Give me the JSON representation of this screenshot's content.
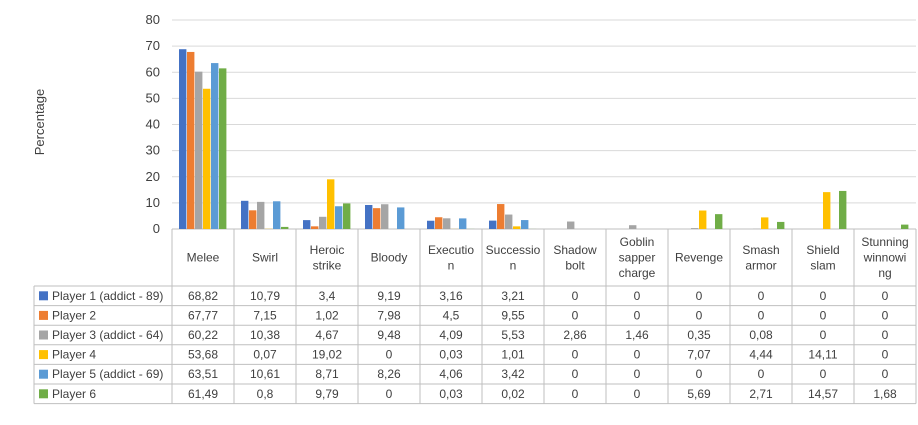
{
  "chart_data": {
    "type": "bar",
    "ylabel": "Percentage",
    "ylim": [
      0,
      80
    ],
    "yticks": [
      0,
      10,
      20,
      30,
      40,
      50,
      60,
      70,
      80
    ],
    "gridlines": true,
    "legend": "table-left",
    "categories": [
      [
        "Melee"
      ],
      [
        "Swirl"
      ],
      [
        "Heroic",
        "strike"
      ],
      [
        "Bloody"
      ],
      [
        "Executio",
        "n"
      ],
      [
        "Successio",
        "n"
      ],
      [
        "Shadow",
        "bolt"
      ],
      [
        "Goblin",
        "sapper",
        "charge"
      ],
      [
        "Revenge"
      ],
      [
        "Smash",
        "armor"
      ],
      [
        "Shield",
        "slam"
      ],
      [
        "Stunning",
        "winnowi",
        "ng"
      ]
    ],
    "series": [
      {
        "name": "Player 1 (addict - 89)",
        "color": "#4472C4",
        "values": [
          68.82,
          10.79,
          3.4,
          9.19,
          3.16,
          3.21,
          0,
          0,
          0,
          0,
          0,
          0
        ],
        "labels": [
          "68,82",
          "10,79",
          "3,4",
          "9,19",
          "3,16",
          "3,21",
          "0",
          "0",
          "0",
          "0",
          "0",
          "0"
        ]
      },
      {
        "name": "Player 2",
        "color": "#ED7D31",
        "values": [
          67.77,
          7.15,
          1.02,
          7.98,
          4.5,
          9.55,
          0,
          0,
          0,
          0,
          0,
          0
        ],
        "labels": [
          "67,77",
          "7,15",
          "1,02",
          "7,98",
          "4,5",
          "9,55",
          "0",
          "0",
          "0",
          "0",
          "0",
          "0"
        ]
      },
      {
        "name": "Player 3 (addict - 64)",
        "color": "#A5A5A5",
        "values": [
          60.22,
          10.38,
          4.67,
          9.48,
          4.09,
          5.53,
          2.86,
          1.46,
          0.35,
          0.08,
          0,
          0
        ],
        "labels": [
          "60,22",
          "10,38",
          "4,67",
          "9,48",
          "4,09",
          "5,53",
          "2,86",
          "1,46",
          "0,35",
          "0,08",
          "0",
          "0"
        ]
      },
      {
        "name": "Player 4",
        "color": "#FFC000",
        "values": [
          53.68,
          0.07,
          19.02,
          0,
          0.03,
          1.01,
          0,
          0,
          7.07,
          4.44,
          14.11,
          0
        ],
        "labels": [
          "53,68",
          "0,07",
          "19,02",
          "0",
          "0,03",
          "1,01",
          "0",
          "0",
          "7,07",
          "4,44",
          "14,11",
          "0"
        ]
      },
      {
        "name": "Player 5 (addict - 69)",
        "color": "#5B9BD5",
        "values": [
          63.51,
          10.61,
          8.71,
          8.26,
          4.06,
          3.42,
          0,
          0,
          0,
          0,
          0,
          0
        ],
        "labels": [
          "63,51",
          "10,61",
          "8,71",
          "8,26",
          "4,06",
          "3,42",
          "0",
          "0",
          "0",
          "0",
          "0",
          "0"
        ]
      },
      {
        "name": "Player 6",
        "color": "#70AD47",
        "values": [
          61.49,
          0.8,
          9.79,
          0,
          0.03,
          0.02,
          0,
          0,
          5.69,
          2.71,
          14.57,
          1.68
        ],
        "labels": [
          "61,49",
          "0,8",
          "9,79",
          "0",
          "0,03",
          "0,02",
          "0",
          "0",
          "5,69",
          "2,71",
          "14,57",
          "1,68"
        ]
      }
    ]
  }
}
